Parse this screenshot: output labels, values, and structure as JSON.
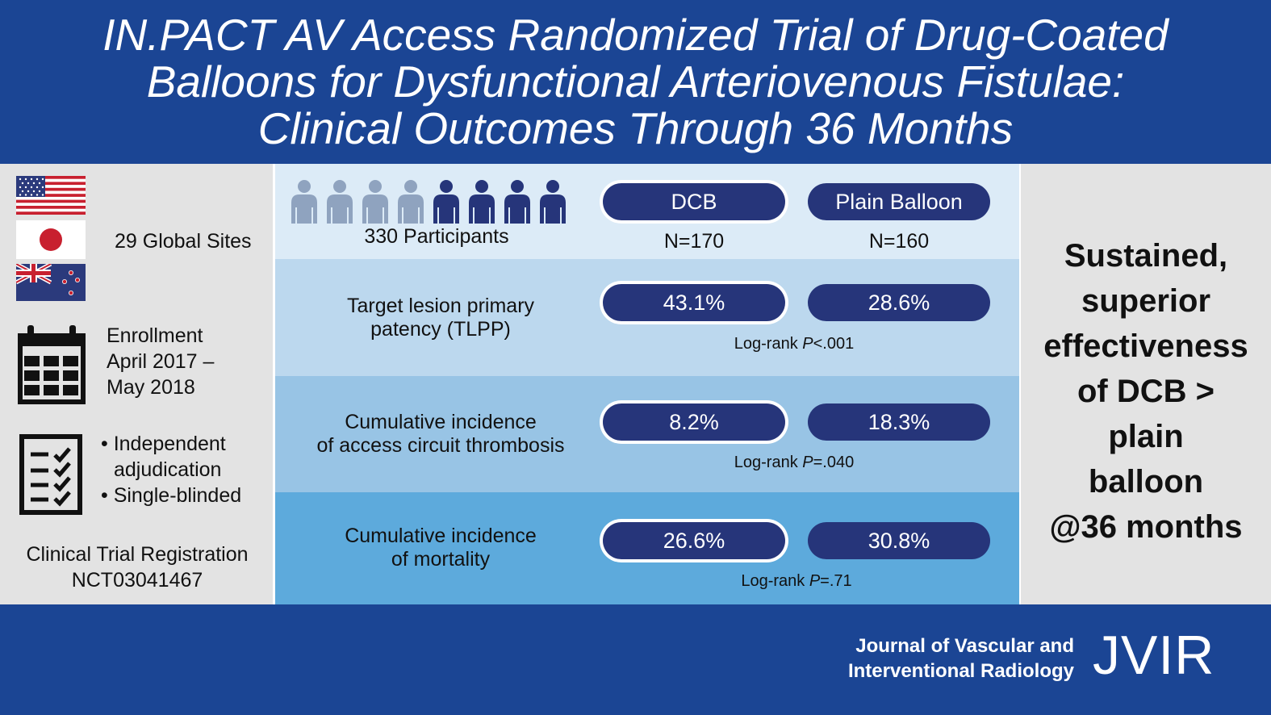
{
  "title": {
    "line1": "IN.PACT AV Access Randomized Trial of Drug-Coated",
    "line2": "Balloons for Dysfunctional Arteriovenous Fistulae:",
    "line3": "Clinical Outcomes Through 36 Months"
  },
  "left": {
    "sites": "29 Global Sites",
    "flags": [
      "usa-flag",
      "japan-flag",
      "new-zealand-flag"
    ],
    "enrollment": [
      "Enrollment",
      "April 2017 –",
      "May 2018"
    ],
    "bullets": [
      "• Independent",
      "adjudication",
      "• Single-blinded"
    ],
    "registration": [
      "Clinical Trial Registration",
      "NCT03041467"
    ]
  },
  "participants": {
    "label": "330 Participants",
    "light_count": 4,
    "dark_count": 4,
    "light_color": "#8fa3bf",
    "dark_color": "#26357a"
  },
  "arms": {
    "dcb": {
      "label": "DCB",
      "n": "N=170"
    },
    "plain": {
      "label": "Plain Balloon",
      "n": "N=160"
    }
  },
  "rows": [
    {
      "label1": "Target lesion primary",
      "label2": "patency (TLPP)",
      "dcb": "43.1%",
      "plain": "28.6%",
      "p_prefix": "Log-rank ",
      "p_italic": "P",
      "p_value": "<.001"
    },
    {
      "label1": "Cumulative incidence",
      "label2": "of access circuit thrombosis",
      "dcb": "8.2%",
      "plain": "18.3%",
      "p_prefix": "Log-rank ",
      "p_italic": "P",
      "p_value": "=.040"
    },
    {
      "label1": "Cumulative incidence",
      "label2": "of mortality",
      "dcb": "26.6%",
      "plain": "30.8%",
      "p_prefix": "Log-rank ",
      "p_italic": "P",
      "p_value": "=.71"
    }
  ],
  "conclusion": [
    "Sustained,",
    "superior",
    "effectiveness",
    "of DCB >",
    "plain",
    "balloon",
    "@36 months"
  ],
  "footer": {
    "journal_line1": "Journal of Vascular and",
    "journal_line2": "Interventional Radiology",
    "logo": "JVIR"
  },
  "colors": {
    "brand_blue": "#1b4594",
    "pill_navy": "#26357a",
    "band1": "#dcebf7",
    "band2": "#bcd8ee",
    "band3": "#98c4e5",
    "band4": "#5daadc"
  }
}
